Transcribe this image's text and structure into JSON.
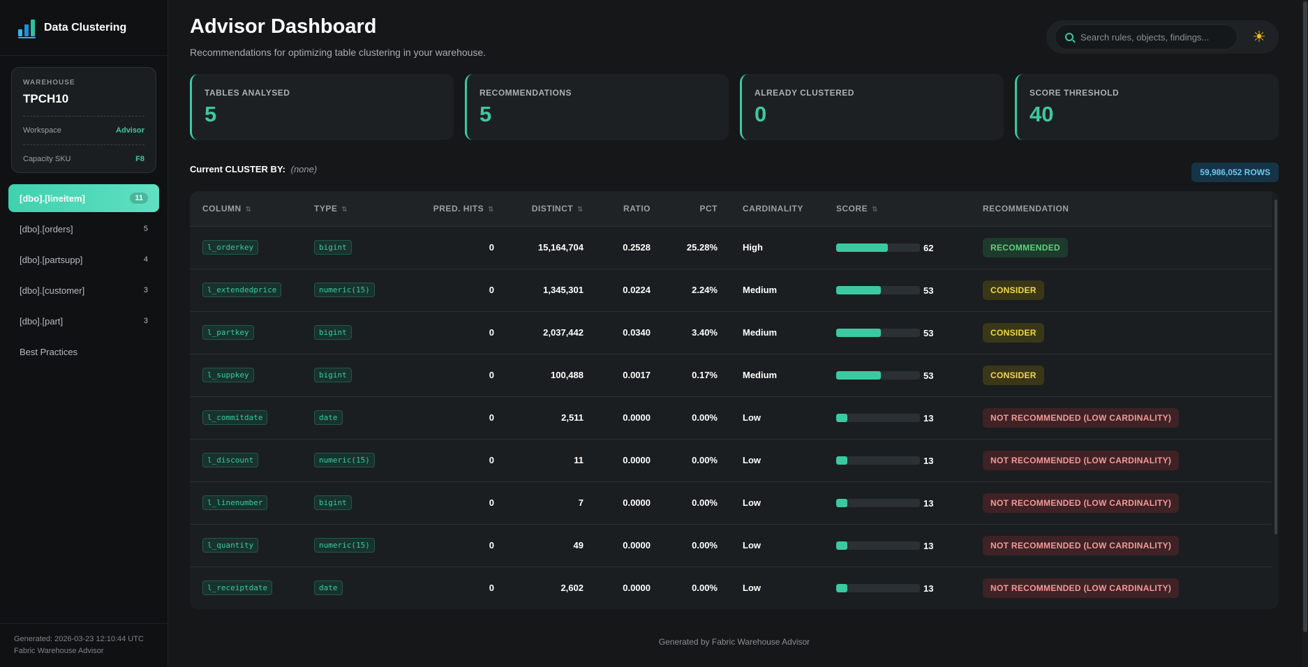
{
  "app": {
    "brand": "Data Clustering"
  },
  "warehouse": {
    "label": "WAREHOUSE",
    "name": "TPCH10",
    "workspace_label": "Workspace",
    "workspace_value": "Advisor",
    "sku_label": "Capacity SKU",
    "sku_value": "F8"
  },
  "nav": {
    "items": [
      {
        "label": "[dbo].[lineitem]",
        "count": "11",
        "active": true
      },
      {
        "label": "[dbo].[orders]",
        "count": "5",
        "active": false
      },
      {
        "label": "[dbo].[partsupp]",
        "count": "4",
        "active": false
      },
      {
        "label": "[dbo].[customer]",
        "count": "3",
        "active": false
      },
      {
        "label": "[dbo].[part]",
        "count": "3",
        "active": false
      }
    ],
    "best_practices": "Best Practices"
  },
  "sidebar_footer": {
    "generated": "Generated: 2026-03-23 12:10:44 UTC",
    "tool": "Fabric Warehouse Advisor"
  },
  "header": {
    "title": "Advisor Dashboard",
    "subtitle": "Recommendations for optimizing table clustering in your warehouse.",
    "search_placeholder": "Search rules, objects, findings...",
    "theme_icon": "sun-icon"
  },
  "stats": [
    {
      "label": "TABLES ANALYSED",
      "value": "5"
    },
    {
      "label": "RECOMMENDATIONS",
      "value": "5"
    },
    {
      "label": "ALREADY CLUSTERED",
      "value": "0"
    },
    {
      "label": "SCORE THRESHOLD",
      "value": "40"
    }
  ],
  "cluster": {
    "label": "Current CLUSTER BY:",
    "value": "(none)",
    "rows_badge": "59,986,052 ROWS"
  },
  "table": {
    "headers": {
      "column": "COLUMN",
      "type": "TYPE",
      "pred_hits": "PRED. HITS",
      "distinct": "DISTINCT",
      "ratio": "RATIO",
      "pct": "PCT",
      "cardinality": "CARDINALITY",
      "score": "SCORE",
      "recommendation": "RECOMMENDATION"
    },
    "rows": [
      {
        "column": "l_orderkey",
        "type": "bigint",
        "pred_hits": "0",
        "distinct": "15,164,704",
        "ratio": "0.2528",
        "pct": "25.28%",
        "cardinality": "High",
        "score": 62,
        "score_label": "62",
        "rec": "RECOMMENDED",
        "rec_kind": "recommended"
      },
      {
        "column": "l_extendedprice",
        "type": "numeric(15)",
        "pred_hits": "0",
        "distinct": "1,345,301",
        "ratio": "0.0224",
        "pct": "2.24%",
        "cardinality": "Medium",
        "score": 53,
        "score_label": "53",
        "rec": "CONSIDER",
        "rec_kind": "consider"
      },
      {
        "column": "l_partkey",
        "type": "bigint",
        "pred_hits": "0",
        "distinct": "2,037,442",
        "ratio": "0.0340",
        "pct": "3.40%",
        "cardinality": "Medium",
        "score": 53,
        "score_label": "53",
        "rec": "CONSIDER",
        "rec_kind": "consider"
      },
      {
        "column": "l_suppkey",
        "type": "bigint",
        "pred_hits": "0",
        "distinct": "100,488",
        "ratio": "0.0017",
        "pct": "0.17%",
        "cardinality": "Medium",
        "score": 53,
        "score_label": "53",
        "rec": "CONSIDER",
        "rec_kind": "consider"
      },
      {
        "column": "l_commitdate",
        "type": "date",
        "pred_hits": "0",
        "distinct": "2,511",
        "ratio": "0.0000",
        "pct": "0.00%",
        "cardinality": "Low",
        "score": 13,
        "score_label": "13",
        "rec": "NOT RECOMMENDED (LOW CARDINALITY)",
        "rec_kind": "not"
      },
      {
        "column": "l_discount",
        "type": "numeric(15)",
        "pred_hits": "0",
        "distinct": "11",
        "ratio": "0.0000",
        "pct": "0.00%",
        "cardinality": "Low",
        "score": 13,
        "score_label": "13",
        "rec": "NOT RECOMMENDED (LOW CARDINALITY)",
        "rec_kind": "not"
      },
      {
        "column": "l_linenumber",
        "type": "bigint",
        "pred_hits": "0",
        "distinct": "7",
        "ratio": "0.0000",
        "pct": "0.00%",
        "cardinality": "Low",
        "score": 13,
        "score_label": "13",
        "rec": "NOT RECOMMENDED (LOW CARDINALITY)",
        "rec_kind": "not"
      },
      {
        "column": "l_quantity",
        "type": "numeric(15)",
        "pred_hits": "0",
        "distinct": "49",
        "ratio": "0.0000",
        "pct": "0.00%",
        "cardinality": "Low",
        "score": 13,
        "score_label": "13",
        "rec": "NOT RECOMMENDED (LOW CARDINALITY)",
        "rec_kind": "not"
      },
      {
        "column": "l_receiptdate",
        "type": "date",
        "pred_hits": "0",
        "distinct": "2,602",
        "ratio": "0.0000",
        "pct": "0.00%",
        "cardinality": "Low",
        "score": 13,
        "score_label": "13",
        "rec": "NOT RECOMMENDED (LOW CARDINALITY)",
        "rec_kind": "not"
      }
    ]
  },
  "footer": "Generated by Fabric Warehouse Advisor",
  "colors": {
    "accent": "#3cc9a2",
    "recommended": "#5fd17f",
    "consider": "#f1d84b",
    "not_recommended": "#f29a9a"
  }
}
